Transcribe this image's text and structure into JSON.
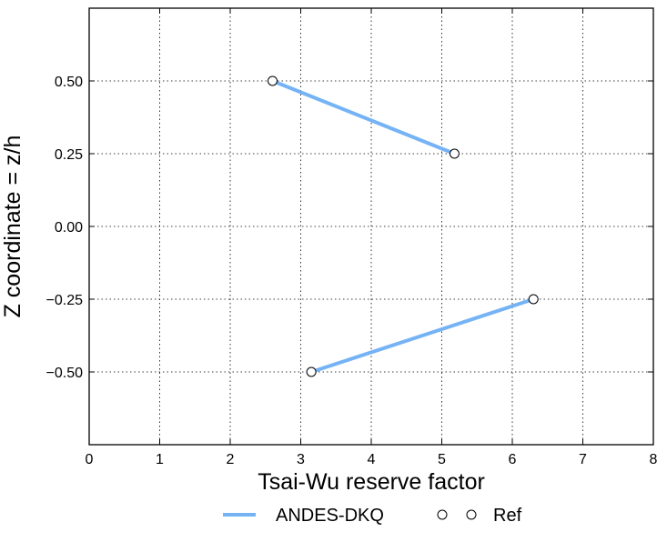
{
  "chart_data": {
    "type": "line",
    "xlabel": "Tsai-Wu reserve factor",
    "ylabel": "Z coordinate = z/h",
    "xlim": [
      0,
      8
    ],
    "ylim": [
      -0.75,
      0.75
    ],
    "x_ticks": [
      0,
      1,
      2,
      3,
      4,
      5,
      6,
      7,
      8
    ],
    "x_tick_labels": [
      "0",
      "1",
      "2",
      "3",
      "4",
      "5",
      "6",
      "7",
      "8"
    ],
    "y_ticks": [
      0.5,
      0.25,
      0.0,
      -0.25,
      -0.5
    ],
    "y_tick_labels": [
      "0.50",
      "0.25",
      "0.00",
      "−0.25",
      "−0.50"
    ],
    "grid": true,
    "legend_position": "bottom-center",
    "series": [
      {
        "name": "ANDES-DKQ",
        "style": "line",
        "color": "#75b3f5",
        "segments": [
          [
            {
              "x": 2.6,
              "y": 0.5
            },
            {
              "x": 5.18,
              "y": 0.25
            }
          ],
          [
            {
              "x": 3.15,
              "y": -0.5
            },
            {
              "x": 6.3,
              "y": -0.25
            }
          ]
        ]
      },
      {
        "name": "Ref",
        "style": "markers",
        "marker": "open-circle",
        "color": "#000000",
        "points": [
          {
            "x": 2.6,
            "y": 0.5
          },
          {
            "x": 5.18,
            "y": 0.25
          },
          {
            "x": 3.15,
            "y": -0.5
          },
          {
            "x": 6.3,
            "y": -0.25
          }
        ]
      }
    ]
  }
}
